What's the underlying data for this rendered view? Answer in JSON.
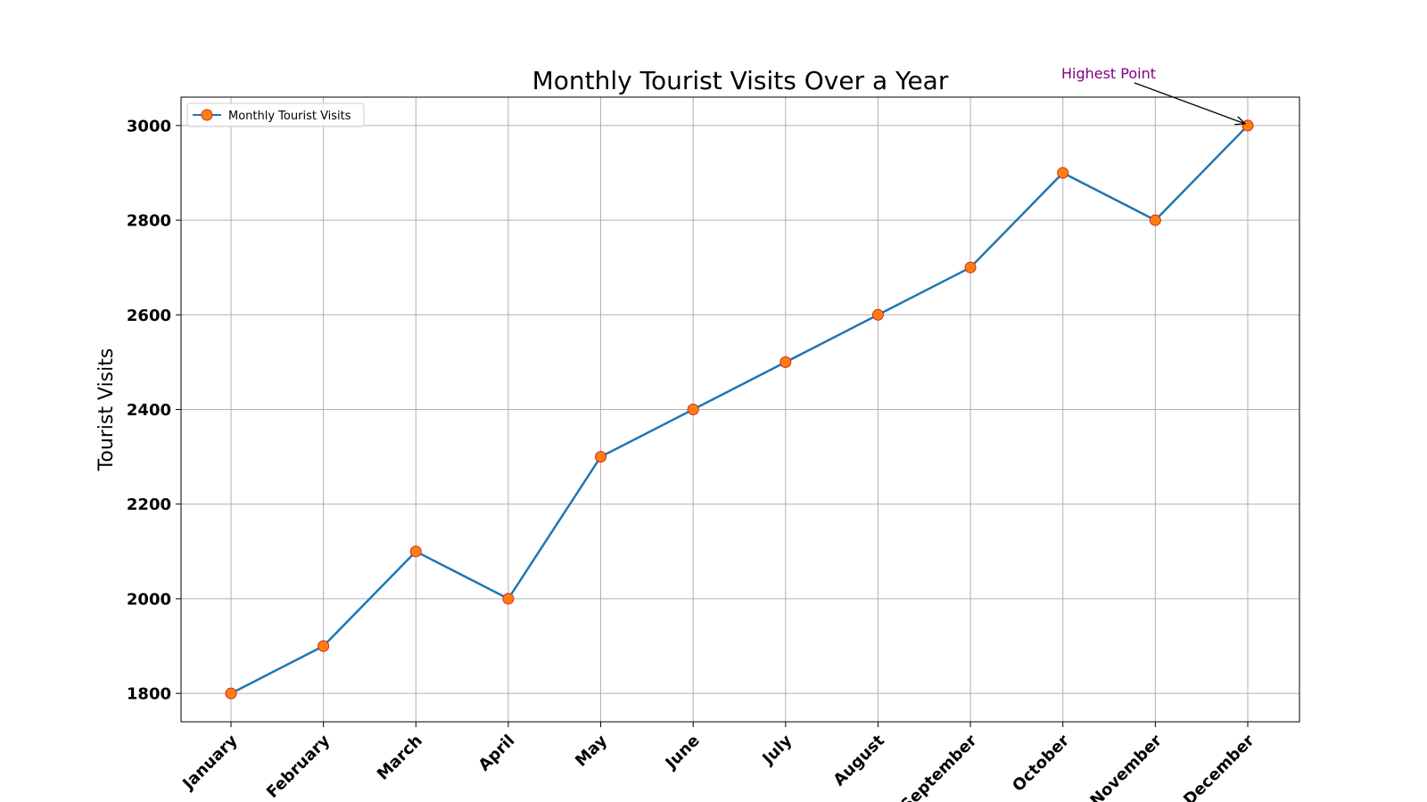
{
  "colors": {
    "line": "#1f77b4",
    "marker_fill": "#ff7f0e",
    "marker_edge": "#d62728",
    "grid": "#b0b0b0",
    "annotation": "#800080",
    "arrow": "#000000"
  },
  "chart_data": {
    "type": "line",
    "title": "Monthly Tourist Visits Over a Year",
    "xlabel": "",
    "ylabel": "Tourist Visits",
    "categories": [
      "January",
      "February",
      "March",
      "April",
      "May",
      "June",
      "July",
      "August",
      "September",
      "October",
      "November",
      "December"
    ],
    "series": [
      {
        "name": "Monthly Tourist Visits",
        "values": [
          1800,
          1900,
          2100,
          2000,
          2300,
          2400,
          2500,
          2600,
          2700,
          2900,
          2800,
          3000
        ]
      }
    ],
    "ylim": [
      1740,
      3060
    ],
    "yticks": [
      1800,
      2000,
      2200,
      2400,
      2600,
      2800,
      3000
    ],
    "grid": true,
    "legend_position": "top-left",
    "annotations": [
      {
        "text": "Highest Point",
        "point_category": "December",
        "point_value": 3000
      }
    ]
  }
}
